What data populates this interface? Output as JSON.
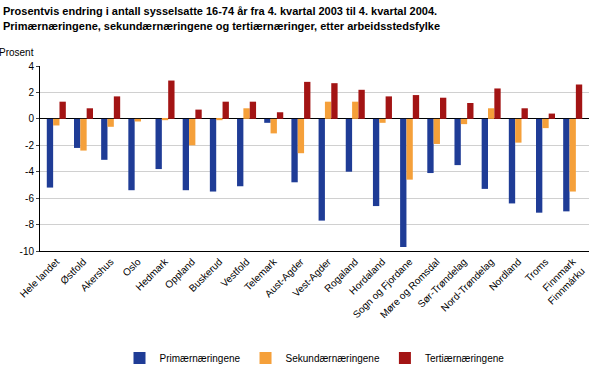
{
  "chart_data": {
    "type": "bar",
    "title": "Prosentvis endring i antall sysselsatte 16-74 år fra 4. kvartal 2003 til 4. kvartal 2004.\nPrimærnæringene, sekundærnæringene og tertiærnæringer, etter arbeidsstedsfylke",
    "y_label": "Prosent",
    "categories": [
      "Hele landet",
      "Østfold",
      "Akershus",
      "Oslo",
      "Hedmark",
      "Oppland",
      "Buskerud",
      "Vestfold",
      "Telemark",
      "Aust-Agder",
      "Vest-Agder",
      "Rogaland",
      "Hordaland",
      "Sogn og Fjordane",
      "Møre og Romsdal",
      "Sør-Trøndelag",
      "Nord-Trøndelag",
      "Nordland",
      "Troms",
      "Finnmark\nFinnmárku"
    ],
    "series": [
      {
        "name": "Primærnæringene",
        "color": "#1f3c96",
        "values": [
          -5.2,
          -2.2,
          -3.1,
          -5.4,
          -3.8,
          -5.4,
          -5.5,
          -5.1,
          -0.3,
          -4.8,
          -7.7,
          -4.0,
          -6.6,
          -9.7,
          -4.1,
          -3.5,
          -5.3,
          -6.4,
          -7.1,
          -7.0
        ]
      },
      {
        "name": "Sekundærnæringene",
        "color": "#f5a03a",
        "values": [
          -0.5,
          -2.4,
          -0.6,
          -0.2,
          -0.1,
          -2.0,
          -0.1,
          0.8,
          -1.1,
          -2.6,
          1.3,
          1.3,
          -0.3,
          -4.6,
          -1.9,
          -0.4,
          0.8,
          -1.8,
          -0.7,
          -5.5
        ]
      },
      {
        "name": "Tertiærnæringene",
        "color": "#a31414",
        "values": [
          1.3,
          0.8,
          1.7,
          0.0,
          2.9,
          0.7,
          1.3,
          1.3,
          0.5,
          2.8,
          2.7,
          2.2,
          1.7,
          1.8,
          1.6,
          1.2,
          2.3,
          0.8,
          0.4,
          2.6
        ]
      }
    ],
    "ylim": [
      -10,
      4
    ],
    "yticks": [
      -10,
      -8,
      -6,
      -4,
      -2,
      0,
      2,
      4
    ],
    "grid": true,
    "legend": "bottom"
  }
}
